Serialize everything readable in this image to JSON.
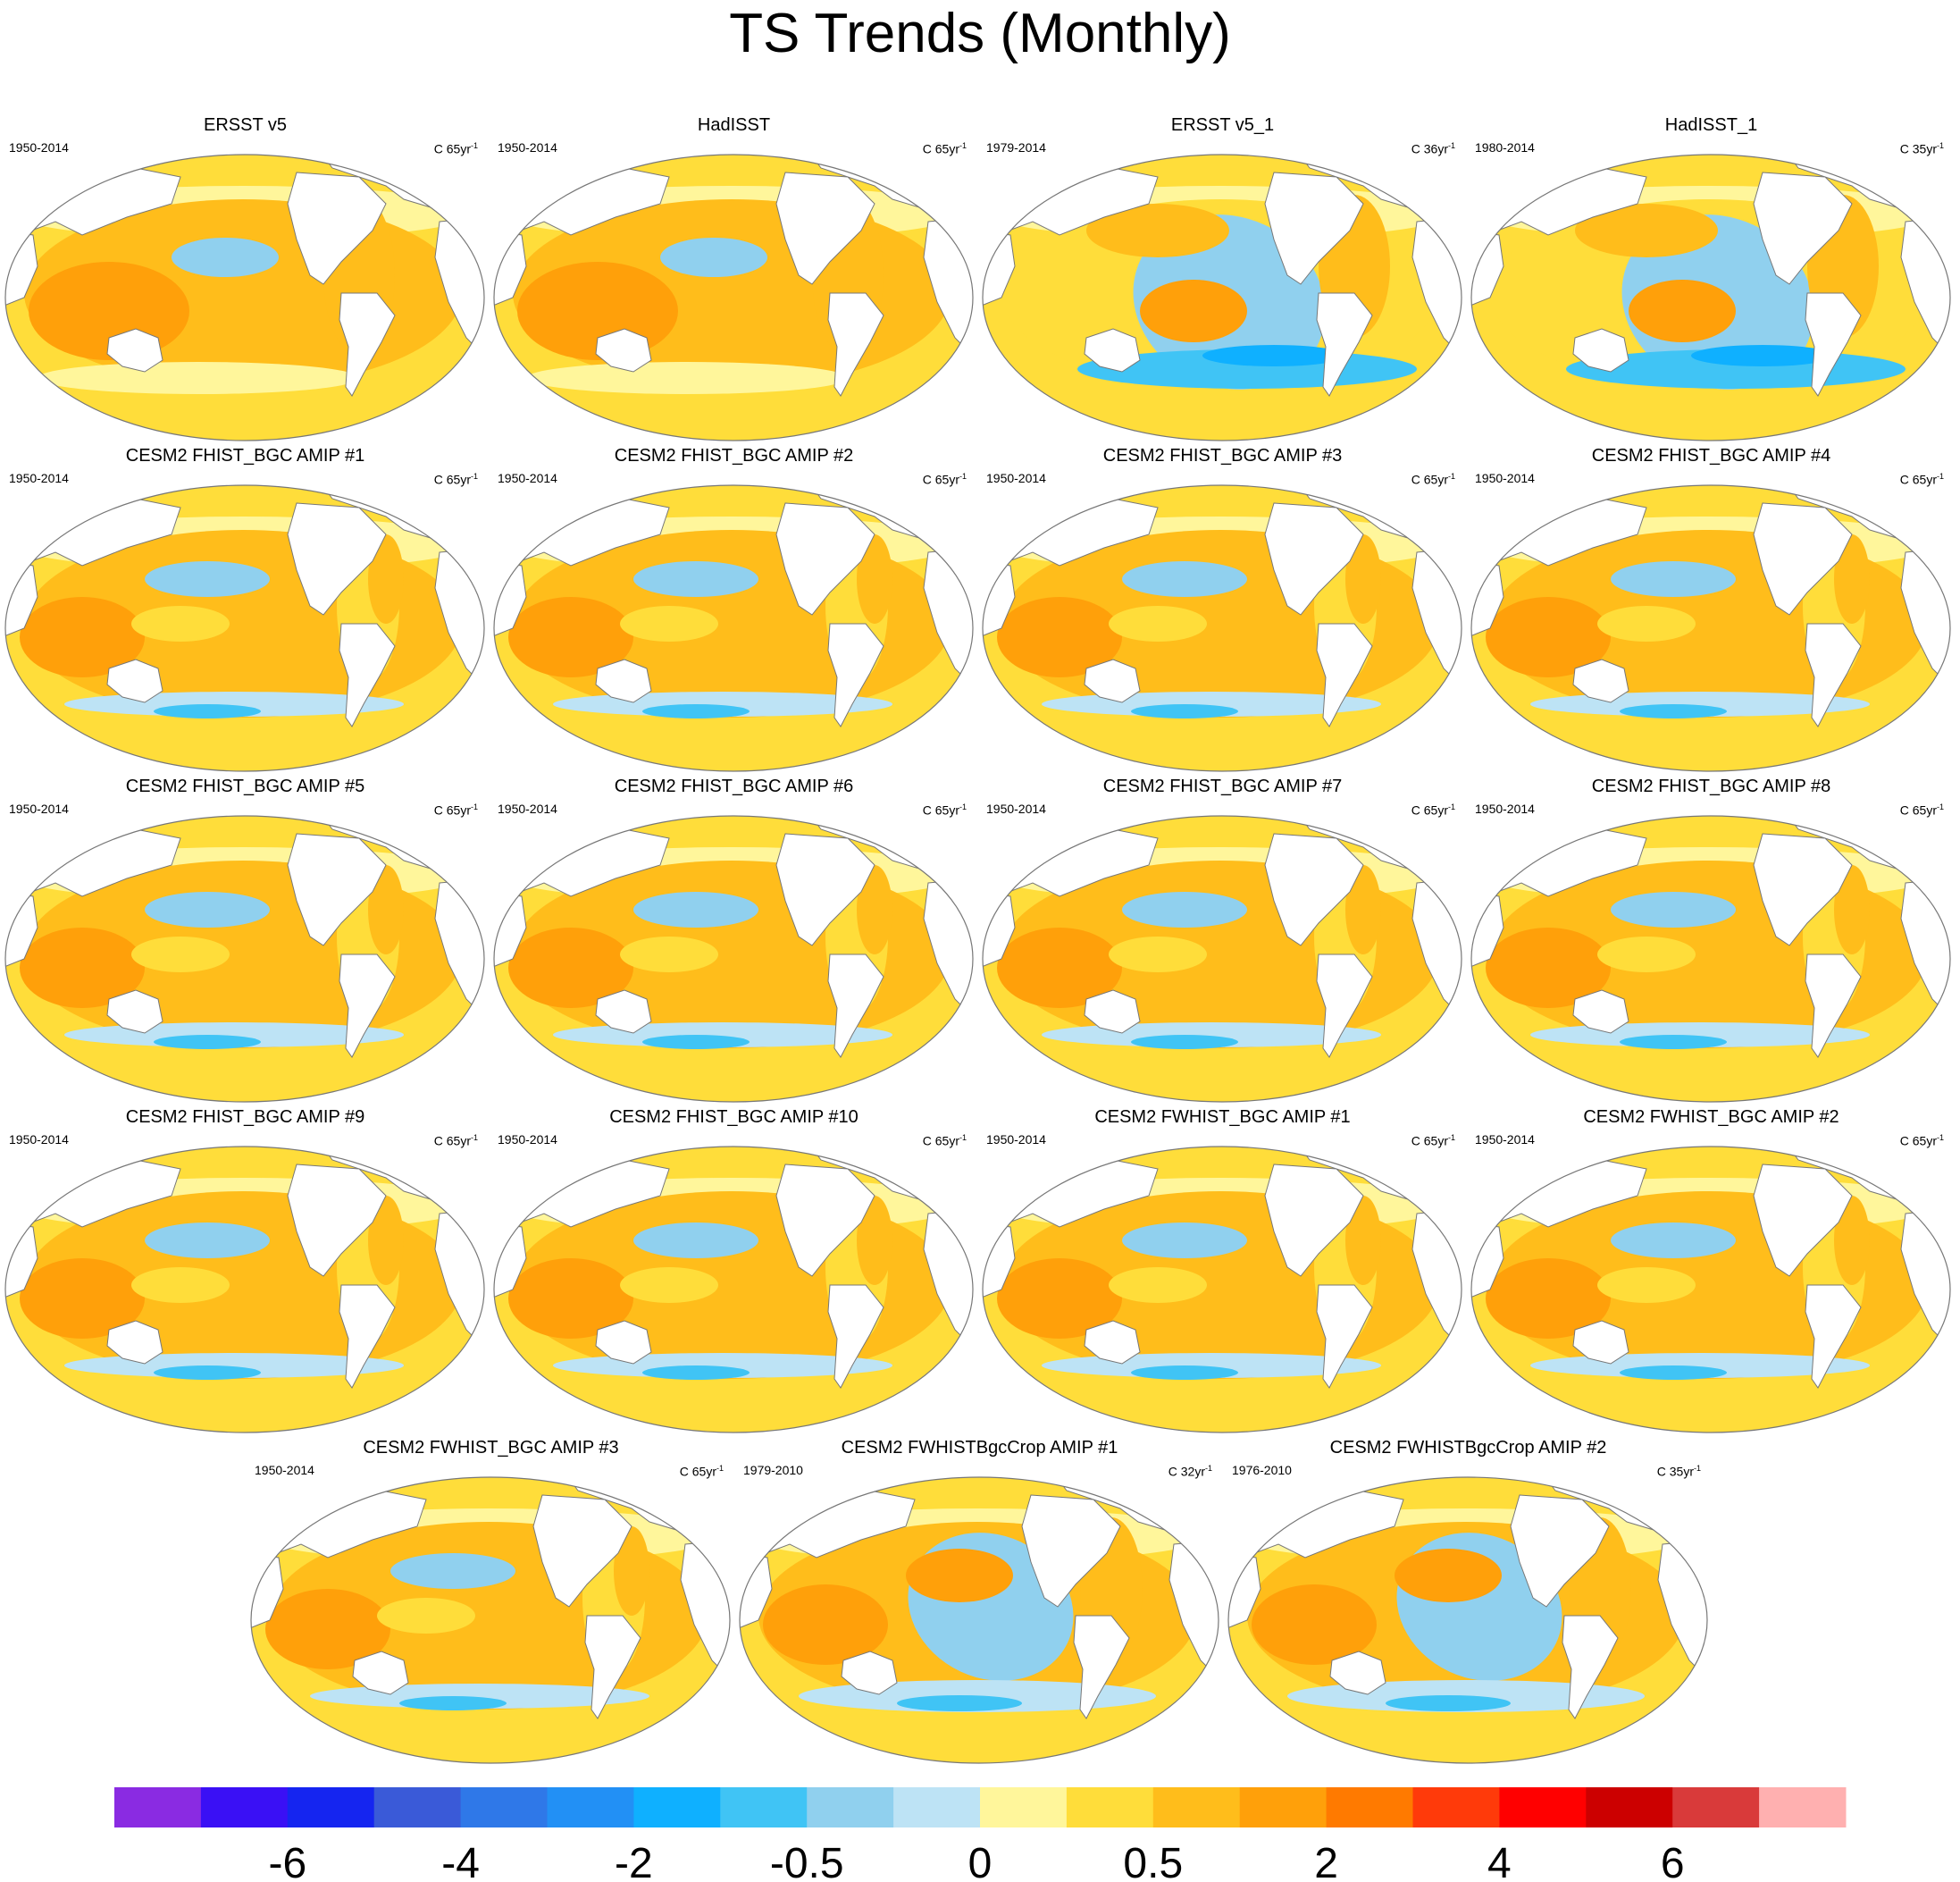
{
  "title": "TS Trends (Monthly)",
  "panels": [
    {
      "title": "ERSST v5",
      "period": "1950-2014",
      "units": "C 65yr",
      "unit_exp": "-1",
      "pattern": "obs_long"
    },
    {
      "title": "HadISST",
      "period": "1950-2014",
      "units": "C 65yr",
      "unit_exp": "-1",
      "pattern": "obs_long"
    },
    {
      "title": "ERSST v5_1",
      "period": "1979-2014",
      "units": "C 36yr",
      "unit_exp": "-1",
      "pattern": "obs_short"
    },
    {
      "title": "HadISST_1",
      "period": "1980-2014",
      "units": "C 35yr",
      "unit_exp": "-1",
      "pattern": "obs_short"
    },
    {
      "title": "CESM2 FHIST_BGC AMIP #1",
      "period": "1950-2014",
      "units": "C 65yr",
      "unit_exp": "-1",
      "pattern": "model"
    },
    {
      "title": "CESM2 FHIST_BGC AMIP #2",
      "period": "1950-2014",
      "units": "C 65yr",
      "unit_exp": "-1",
      "pattern": "model"
    },
    {
      "title": "CESM2 FHIST_BGC AMIP #3",
      "period": "1950-2014",
      "units": "C 65yr",
      "unit_exp": "-1",
      "pattern": "model"
    },
    {
      "title": "CESM2 FHIST_BGC AMIP #4",
      "period": "1950-2014",
      "units": "C 65yr",
      "unit_exp": "-1",
      "pattern": "model"
    },
    {
      "title": "CESM2 FHIST_BGC AMIP #5",
      "period": "1950-2014",
      "units": "C 65yr",
      "unit_exp": "-1",
      "pattern": "model"
    },
    {
      "title": "CESM2 FHIST_BGC AMIP #6",
      "period": "1950-2014",
      "units": "C 65yr",
      "unit_exp": "-1",
      "pattern": "model"
    },
    {
      "title": "CESM2 FHIST_BGC AMIP #7",
      "period": "1950-2014",
      "units": "C 65yr",
      "unit_exp": "-1",
      "pattern": "model"
    },
    {
      "title": "CESM2 FHIST_BGC AMIP #8",
      "period": "1950-2014",
      "units": "C 65yr",
      "unit_exp": "-1",
      "pattern": "model"
    },
    {
      "title": "CESM2 FHIST_BGC AMIP #9",
      "period": "1950-2014",
      "units": "C 65yr",
      "unit_exp": "-1",
      "pattern": "model"
    },
    {
      "title": "CESM2 FHIST_BGC AMIP #10",
      "period": "1950-2014",
      "units": "C 65yr",
      "unit_exp": "-1",
      "pattern": "model"
    },
    {
      "title": "CESM2 FWHIST_BGC AMIP #1",
      "period": "1950-2014",
      "units": "C 65yr",
      "unit_exp": "-1",
      "pattern": "model"
    },
    {
      "title": "CESM2 FWHIST_BGC AMIP #2",
      "period": "1950-2014",
      "units": "C 65yr",
      "unit_exp": "-1",
      "pattern": "model"
    },
    {
      "title": "CESM2 FWHIST_BGC AMIP #3",
      "period": "1950-2014",
      "units": "C 65yr",
      "unit_exp": "-1",
      "pattern": "model"
    },
    {
      "title": "CESM2 FWHISTBgcCrop AMIP #1",
      "period": "1979-2010",
      "units": "C 32yr",
      "unit_exp": "-1",
      "pattern": "model_short"
    },
    {
      "title": "CESM2 FWHISTBgcCrop AMIP #2",
      "period": "1976-2010",
      "units": "C 35yr",
      "unit_exp": "-1",
      "pattern": "model_short"
    }
  ],
  "chart_data": {
    "type": "heatmap",
    "title": "TS Trends (Monthly)",
    "projection": "Robinson-like, Pacific-centered",
    "variable": "surface temperature trend",
    "colorbar": {
      "colors": [
        "#8a2be2",
        "#3a10f5",
        "#1525f0",
        "#3a5ad8",
        "#2f78e8",
        "#2290f5",
        "#0fb0ff",
        "#40c4f5",
        "#90d0ee",
        "#bde3f5",
        "#fff69b",
        "#ffdd3a",
        "#ffbd1b",
        "#ffa00a",
        "#ff7a00",
        "#ff3a0a",
        "#ff0000",
        "#cc0000",
        "#d93a3a",
        "#ffb0b0"
      ],
      "tick_labels": [
        "-6",
        "-4",
        "-2",
        "-0.5",
        "0",
        "0.5",
        "2",
        "4",
        "6"
      ]
    }
  }
}
